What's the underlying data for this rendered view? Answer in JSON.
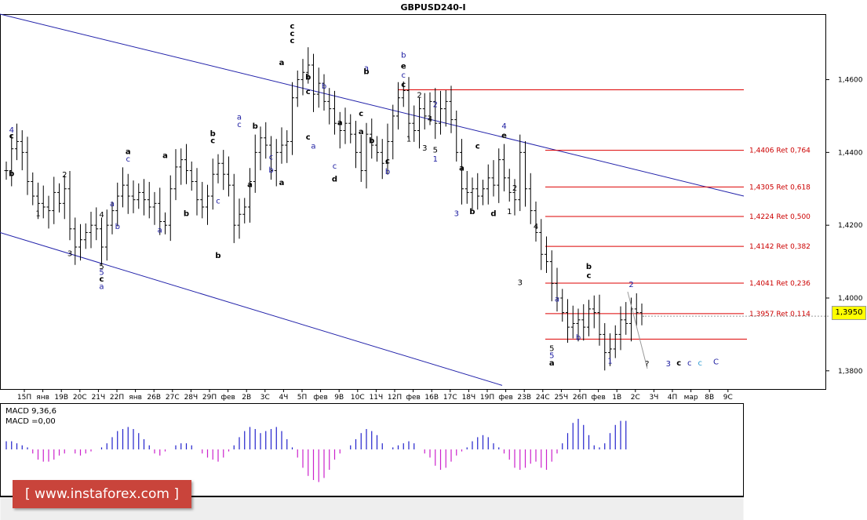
{
  "chart_data": {
    "type": "candlestick",
    "title": "GBPUSD240-I",
    "yticks": [
      "1,4600",
      "1,4400",
      "1,4200",
      "1,4000",
      "1,3800"
    ],
    "ytick_values": [
      1.46,
      1.44,
      1.42,
      1.4,
      1.38
    ],
    "ylim": [
      1.375,
      1.478
    ],
    "xticks": [
      "15П",
      "янв",
      "19В",
      "20С",
      "21Ч",
      "22П",
      "янв",
      "26В",
      "27С",
      "28Ч",
      "29П",
      "фев",
      "2В",
      "3С",
      "4Ч",
      "5П",
      "фев",
      "9В",
      "10С",
      "11Ч",
      "12П",
      "фев",
      "16В",
      "17С",
      "18Ч",
      "19П",
      "фев",
      "23В",
      "24С",
      "25Ч",
      "26П",
      "фев",
      "1В",
      "2С",
      "3Ч",
      "4П",
      "мар",
      "8В",
      "9С"
    ],
    "current_price": "1,3950",
    "current_price_value": 1.395,
    "bars": [
      1.435,
      1.441,
      1.443,
      1.44,
      1.432,
      1.428,
      1.426,
      1.425,
      1.424,
      1.429,
      1.426,
      1.43,
      1.419,
      1.414,
      1.416,
      1.418,
      1.42,
      1.419,
      1.414,
      1.42,
      1.424,
      1.428,
      1.431,
      1.428,
      1.427,
      1.429,
      1.427,
      1.425,
      1.426,
      1.421,
      1.42,
      1.43,
      1.436,
      1.438,
      1.435,
      1.432,
      1.427,
      1.425,
      1.428,
      1.434,
      1.437,
      1.434,
      1.431,
      1.42,
      1.423,
      1.425,
      1.432,
      1.44,
      1.444,
      1.442,
      1.435,
      1.44,
      1.442,
      1.443,
      1.455,
      1.46,
      1.462,
      1.464,
      1.456,
      1.459,
      1.454,
      1.452,
      1.448,
      1.446,
      1.448,
      1.445,
      1.44,
      1.435,
      1.445,
      1.442,
      1.44,
      1.437,
      1.443,
      1.45,
      1.455,
      1.457,
      1.448,
      1.446,
      1.452,
      1.45,
      1.454,
      1.448,
      1.452,
      1.454,
      1.449,
      1.44,
      1.43,
      1.429,
      1.43,
      1.428,
      1.43,
      1.433,
      1.431,
      1.438,
      1.433,
      1.429,
      1.427,
      1.44,
      1.43,
      1.424,
      1.418,
      1.412,
      1.41,
      1.404,
      1.4,
      1.396,
      1.392,
      1.393,
      1.394,
      1.392,
      1.397,
      1.396,
      1.39,
      1.385,
      1.386,
      1.39,
      1.394,
      1.393,
      1.397,
      1.396,
      1.395
    ],
    "fib_levels": [
      {
        "label": "1,4406 Ret 0,764",
        "value": 1.4406
      },
      {
        "label": "1,4305 Ret 0,618",
        "value": 1.4305
      },
      {
        "label": "1,4224 Ret 0,500",
        "value": 1.4224
      },
      {
        "label": "1,4142 Ret 0,382",
        "value": 1.4142
      },
      {
        "label": "1,4041 Ret 0,236",
        "value": 1.4041
      },
      {
        "label": "1,3957 Ret 0,114",
        "value": 1.3957
      }
    ],
    "top_level": 1.4572,
    "bottom_level": 1.3887,
    "channel": {
      "upper": [
        [
          0,
          1.478
        ],
        [
          948,
          1.428
        ]
      ],
      "lower": [
        [
          0,
          1.418
        ],
        [
          640,
          1.376
        ]
      ]
    },
    "wave_labels": [
      {
        "t": "4",
        "i": 1,
        "v": 1.4455,
        "c": "#1a1aa0"
      },
      {
        "t": "c",
        "i": 1,
        "v": 1.4438,
        "c": "#000"
      },
      {
        "t": "b",
        "i": 1,
        "v": 1.4335,
        "c": "#000"
      },
      {
        "t": "2",
        "i": 11,
        "v": 1.4332,
        "c": "#000"
      },
      {
        "t": "1",
        "i": 6,
        "v": 1.4225,
        "c": "#000"
      },
      {
        "t": "3",
        "i": 12,
        "v": 1.4115,
        "c": "#000"
      },
      {
        "t": "4",
        "i": 18,
        "v": 1.4222,
        "c": "#000"
      },
      {
        "t": "5",
        "i": 18,
        "v": 1.408,
        "c": "#000"
      },
      {
        "t": "5",
        "i": 18,
        "v": 1.4063,
        "c": "#1a1aa0"
      },
      {
        "t": "c",
        "i": 18,
        "v": 1.4045,
        "c": "#000"
      },
      {
        "t": "a",
        "i": 18,
        "v": 1.4025,
        "c": "#1a1aa0"
      },
      {
        "t": "a",
        "i": 20,
        "v": 1.4252,
        "c": "#1a1aa0"
      },
      {
        "t": "b",
        "i": 21,
        "v": 1.419,
        "c": "#1a1aa0"
      },
      {
        "t": "c",
        "i": 23,
        "v": 1.4375,
        "c": "#1a1aa0"
      },
      {
        "t": "a",
        "i": 23,
        "v": 1.4395,
        "c": "#000"
      },
      {
        "t": "a",
        "i": 29,
        "v": 1.418,
        "c": "#1a1aa0"
      },
      {
        "t": "a",
        "i": 30,
        "v": 1.4385,
        "c": "#000"
      },
      {
        "t": "b",
        "i": 34,
        "v": 1.4225,
        "c": "#000"
      },
      {
        "t": "c",
        "i": 40,
        "v": 1.426,
        "c": "#1a1aa0"
      },
      {
        "t": "b",
        "i": 40,
        "v": 1.411,
        "c": "#000"
      },
      {
        "t": "b",
        "i": 39,
        "v": 1.4445,
        "c": "#000"
      },
      {
        "t": "c",
        "i": 39,
        "v": 1.4425,
        "c": "#000"
      },
      {
        "t": "a",
        "i": 46,
        "v": 1.4305,
        "c": "#000"
      },
      {
        "t": "a",
        "i": 44,
        "v": 1.449,
        "c": "#1a1aa0"
      },
      {
        "t": "c",
        "i": 44,
        "v": 1.447,
        "c": "#1a1aa0"
      },
      {
        "t": "b",
        "i": 47,
        "v": 1.4465,
        "c": "#000"
      },
      {
        "t": "c",
        "i": 50,
        "v": 1.438,
        "c": "#1a1aa0"
      },
      {
        "t": "b",
        "i": 50,
        "v": 1.4345,
        "c": "#1a1aa0"
      },
      {
        "t": "a",
        "i": 52,
        "v": 1.431,
        "c": "#000"
      },
      {
        "t": "c",
        "i": 54,
        "v": 1.474,
        "c": "#000"
      },
      {
        "t": "c",
        "i": 54,
        "v": 1.472,
        "c": "#000"
      },
      {
        "t": "c",
        "i": 54,
        "v": 1.47,
        "c": "#000"
      },
      {
        "t": "a",
        "i": 52,
        "v": 1.464,
        "c": "#000"
      },
      {
        "t": "b",
        "i": 57,
        "v": 1.46,
        "c": "#000"
      },
      {
        "t": "b",
        "i": 60,
        "v": 1.4575,
        "c": "#1a1aa0"
      },
      {
        "t": "c",
        "i": 57,
        "v": 1.456,
        "c": "#000"
      },
      {
        "t": "c",
        "i": 57,
        "v": 1.4435,
        "c": "#000"
      },
      {
        "t": "a",
        "i": 58,
        "v": 1.441,
        "c": "#1a1aa0"
      },
      {
        "t": "c",
        "i": 62,
        "v": 1.4355,
        "c": "#1a1aa0"
      },
      {
        "t": "d",
        "i": 62,
        "v": 1.432,
        "c": "#000"
      },
      {
        "t": "a",
        "i": 63,
        "v": 1.4475,
        "c": "#000"
      },
      {
        "t": "a",
        "i": 68,
        "v": 1.4625,
        "c": "#1a1aa0"
      },
      {
        "t": "b",
        "i": 68,
        "v": 1.4615,
        "c": "#000"
      },
      {
        "t": "a",
        "i": 67,
        "v": 1.445,
        "c": "#000"
      },
      {
        "t": "b",
        "i": 69,
        "v": 1.4425,
        "c": "#000"
      },
      {
        "t": "c",
        "i": 67,
        "v": 1.45,
        "c": "#000"
      },
      {
        "t": "b",
        "i": 75,
        "v": 1.466,
        "c": "#1a1aa0"
      },
      {
        "t": "e",
        "i": 75,
        "v": 1.463,
        "c": "#000"
      },
      {
        "t": "c",
        "i": 75,
        "v": 1.4605,
        "c": "#1a1aa0"
      },
      {
        "t": "c",
        "i": 75,
        "v": 1.458,
        "c": "#000"
      },
      {
        "t": "2",
        "i": 78,
        "v": 1.455,
        "c": "#000"
      },
      {
        "t": "c",
        "i": 72,
        "v": 1.437,
        "c": "#000"
      },
      {
        "t": "b",
        "i": 72,
        "v": 1.434,
        "c": "#1a1aa0"
      },
      {
        "t": "1",
        "i": 76,
        "v": 1.443,
        "c": "#000"
      },
      {
        "t": "4",
        "i": 80,
        "v": 1.4485,
        "c": "#000"
      },
      {
        "t": "3",
        "i": 79,
        "v": 1.4405,
        "c": "#000"
      },
      {
        "t": "5",
        "i": 81,
        "v": 1.44,
        "c": "#000"
      },
      {
        "t": "1",
        "i": 81,
        "v": 1.4375,
        "c": "#1a1aa0"
      },
      {
        "t": "2",
        "i": 81,
        "v": 1.4525,
        "c": "#1a1aa0"
      },
      {
        "t": "3",
        "i": 85,
        "v": 1.4225,
        "c": "#1a1aa0"
      },
      {
        "t": "a",
        "i": 86,
        "v": 1.435,
        "c": "#000"
      },
      {
        "t": "b",
        "i": 88,
        "v": 1.423,
        "c": "#000"
      },
      {
        "t": "c",
        "i": 89,
        "v": 1.441,
        "c": "#000"
      },
      {
        "t": "4",
        "i": 94,
        "v": 1.4465,
        "c": "#1a1aa0"
      },
      {
        "t": "e",
        "i": 94,
        "v": 1.444,
        "c": "#000"
      },
      {
        "t": "d",
        "i": 92,
        "v": 1.4225,
        "c": "#000"
      },
      {
        "t": "1",
        "i": 95,
        "v": 1.423,
        "c": "#000"
      },
      {
        "t": "2",
        "i": 96,
        "v": 1.4295,
        "c": "#000"
      },
      {
        "t": "4",
        "i": 100,
        "v": 1.419,
        "c": "#000"
      },
      {
        "t": "3",
        "i": 97,
        "v": 1.4035,
        "c": "#000"
      },
      {
        "t": "a",
        "i": 104,
        "v": 1.399,
        "c": "#1a1aa0"
      },
      {
        "t": "5",
        "i": 103,
        "v": 1.3855,
        "c": "#000"
      },
      {
        "t": "5",
        "i": 103,
        "v": 1.3835,
        "c": "#1a1aa0"
      },
      {
        "t": "a",
        "i": 103,
        "v": 1.3815,
        "c": "#000"
      },
      {
        "t": "b",
        "i": 108,
        "v": 1.3885,
        "c": "#1a1aa0"
      },
      {
        "t": "c",
        "i": 110,
        "v": 1.4055,
        "c": "#000"
      },
      {
        "t": "b",
        "i": 110,
        "v": 1.408,
        "c": "#000"
      },
      {
        "t": "1",
        "i": 114,
        "v": 1.382,
        "c": "#1a1aa0"
      },
      {
        "t": "2",
        "i": 118,
        "v": 1.403,
        "c": "#1a1aa0"
      },
      {
        "t": "?",
        "i": 121,
        "v": 1.3812,
        "c": "#000"
      },
      {
        "t": "3",
        "i": 125,
        "v": 1.3812,
        "c": "#1a1aa0"
      },
      {
        "t": "c",
        "i": 127,
        "v": 1.3815,
        "c": "#000"
      },
      {
        "t": "c",
        "i": 129,
        "v": 1.3815,
        "c": "#1a1aa0"
      },
      {
        "t": "c",
        "i": 131,
        "v": 1.3815,
        "c": "#2d9bd1"
      },
      {
        "t": "C",
        "i": 134,
        "v": 1.3818,
        "c": "#1a1aa0"
      }
    ],
    "macd": {
      "label_params": "MACD 9,36,6",
      "label_value": "MACD =0,00",
      "values": [
        0.4,
        0.4,
        0.3,
        0.2,
        0.1,
        -0.2,
        -0.5,
        -0.6,
        -0.6,
        -0.5,
        -0.3,
        -0.2,
        0.0,
        -0.2,
        -0.3,
        -0.2,
        -0.1,
        0.0,
        0.1,
        0.3,
        0.6,
        0.9,
        1.0,
        1.1,
        1.0,
        0.8,
        0.5,
        0.2,
        -0.2,
        -0.3,
        -0.1,
        0.0,
        0.2,
        0.3,
        0.3,
        0.2,
        0.0,
        -0.2,
        -0.4,
        -0.5,
        -0.6,
        -0.4,
        -0.1,
        0.2,
        0.6,
        0.9,
        1.1,
        1.0,
        0.8,
        0.9,
        1.0,
        1.1,
        0.9,
        0.5,
        0.1,
        -0.4,
        -0.9,
        -1.3,
        -1.5,
        -1.6,
        -1.4,
        -1.0,
        -0.5,
        -0.2,
        0.0,
        0.2,
        0.5,
        0.8,
        1.0,
        0.9,
        0.7,
        0.3,
        0.0,
        0.1,
        0.2,
        0.3,
        0.4,
        0.3,
        0.0,
        -0.2,
        -0.4,
        -0.8,
        -1.0,
        -0.9,
        -0.6,
        -0.3,
        -0.1,
        0.1,
        0.4,
        0.6,
        0.7,
        0.6,
        0.3,
        0.1,
        -0.2,
        -0.5,
        -0.9,
        -1.0,
        -0.9,
        -0.7,
        -0.6,
        -0.9,
        -1.0,
        -0.6,
        -0.2,
        0.3,
        0.8,
        1.3,
        1.5,
        1.2,
        0.7,
        0.2,
        0.1,
        0.3,
        0.8,
        1.2,
        1.4,
        1.4
      ]
    }
  }
}
